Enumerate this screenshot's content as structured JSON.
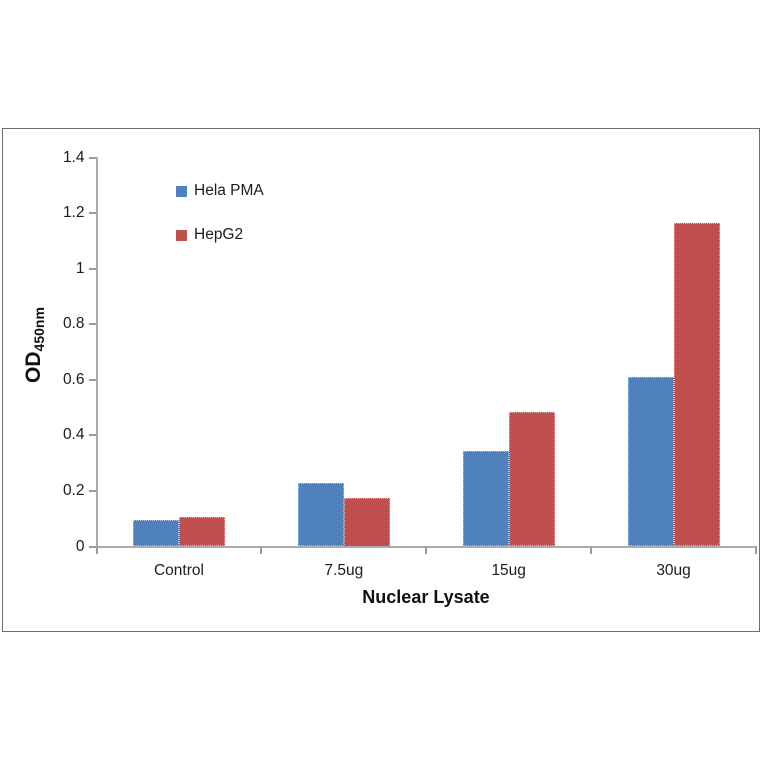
{
  "chart_data": {
    "type": "bar",
    "title": "",
    "categories": [
      "Control",
      "7.5ug",
      "15ug",
      "30ug"
    ],
    "series": [
      {
        "name": "Hela PMA",
        "color": "#4F81BD",
        "values": [
          0.095,
          0.23,
          0.345,
          0.61
        ]
      },
      {
        "name": "HepG2",
        "color": "#C0504D",
        "values": [
          0.107,
          0.175,
          0.485,
          1.165
        ]
      }
    ],
    "xlabel": "Nuclear Lysate",
    "ylabel": "OD",
    "ylabel_subscript": "450nm",
    "ylim": [
      0,
      1.4
    ],
    "ytick_step": 0.2,
    "ytick_labels": [
      "0",
      "0.2",
      "0.4",
      "0.6",
      "0.8",
      "1",
      "1.2",
      "1.4"
    ],
    "grid": false,
    "legend_position": "inside-top-left",
    "frame_color": "#6e6e6e",
    "axis_color": "#ababab"
  }
}
